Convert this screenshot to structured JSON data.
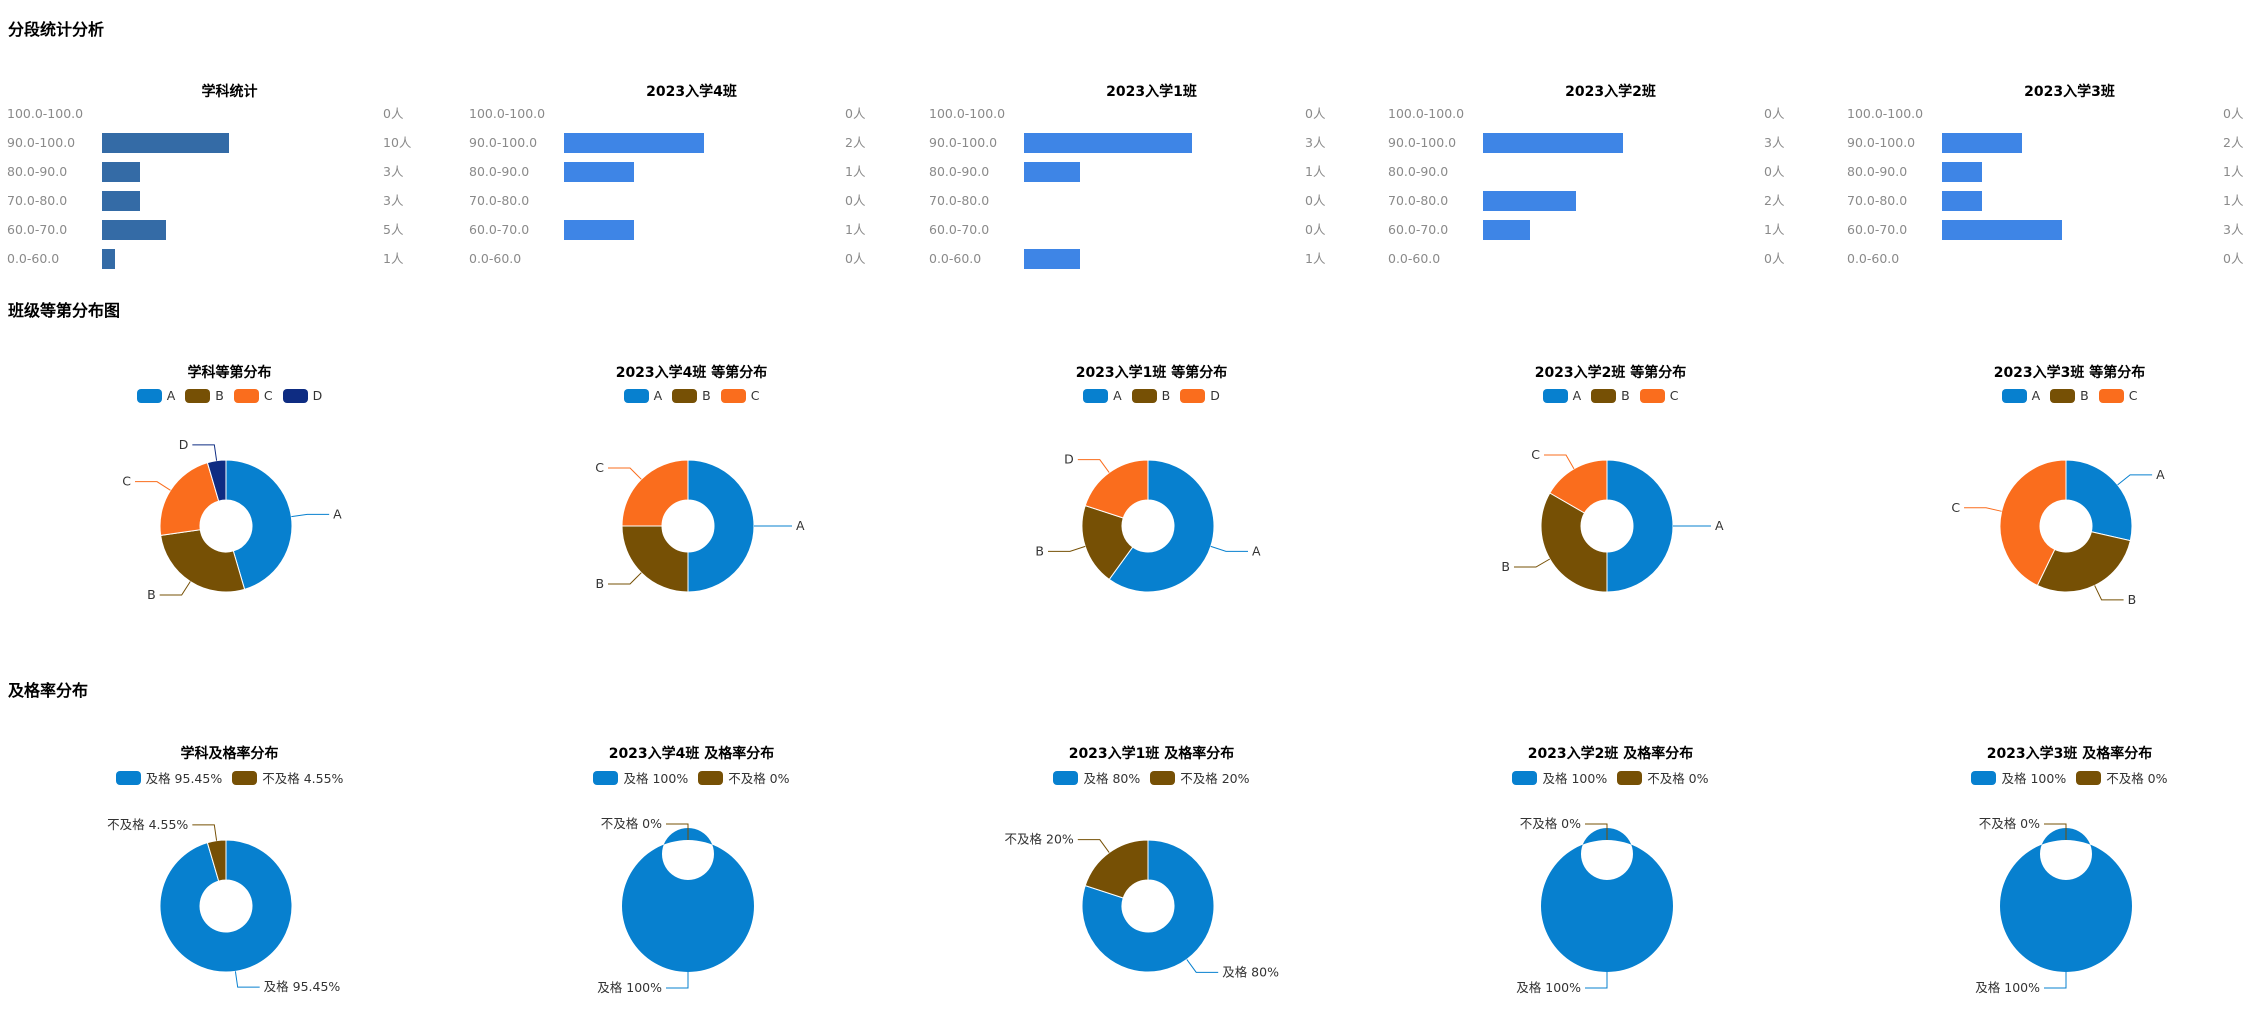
{
  "sections": [
    "分段统计分析",
    "班级等第分布图",
    "及格率分布"
  ],
  "colors": {
    "subject_bar": "#346ba6",
    "class_bar": "#3e85e6",
    "A": "#0780cf",
    "B": "#765005",
    "C": "#fa6d1d",
    "D": "#0e2c82",
    "pass": "#0780cf",
    "fail": "#765005"
  },
  "chart_data": [
    {
      "type": "bar",
      "group": "segment",
      "title": "学科统计",
      "categories": [
        "100.0-100.0",
        "90.0-100.0",
        "80.0-90.0",
        "70.0-80.0",
        "60.0-70.0",
        "0.0-60.0"
      ],
      "values": [
        0,
        10,
        3,
        3,
        5,
        1
      ],
      "labels": [
        "0人",
        "10人",
        "3人",
        "3人",
        "5人",
        "1人"
      ],
      "xlim": [
        0,
        22
      ]
    },
    {
      "type": "bar",
      "group": "segment",
      "title": "2023入学4班",
      "categories": [
        "100.0-100.0",
        "90.0-100.0",
        "80.0-90.0",
        "70.0-80.0",
        "60.0-70.0",
        "0.0-60.0"
      ],
      "values": [
        0,
        2,
        1,
        0,
        1,
        0
      ],
      "labels": [
        "0人",
        "2人",
        "1人",
        "0人",
        "1人",
        "0人"
      ],
      "xlim": [
        0,
        4
      ]
    },
    {
      "type": "bar",
      "group": "segment",
      "title": "2023入学1班",
      "categories": [
        "100.0-100.0",
        "90.0-100.0",
        "80.0-90.0",
        "70.0-80.0",
        "60.0-70.0",
        "0.0-60.0"
      ],
      "values": [
        0,
        3,
        1,
        0,
        0,
        1
      ],
      "labels": [
        "0人",
        "3人",
        "1人",
        "0人",
        "0人",
        "1人"
      ],
      "xlim": [
        0,
        5
      ]
    },
    {
      "type": "bar",
      "group": "segment",
      "title": "2023入学2班",
      "categories": [
        "100.0-100.0",
        "90.0-100.0",
        "80.0-90.0",
        "70.0-80.0",
        "60.0-70.0",
        "0.0-60.0"
      ],
      "values": [
        0,
        3,
        0,
        2,
        1,
        0
      ],
      "labels": [
        "0人",
        "3人",
        "0人",
        "2人",
        "1人",
        "0人"
      ],
      "xlim": [
        0,
        6
      ]
    },
    {
      "type": "bar",
      "group": "segment",
      "title": "2023入学3班",
      "categories": [
        "100.0-100.0",
        "90.0-100.0",
        "80.0-90.0",
        "70.0-80.0",
        "60.0-70.0",
        "0.0-60.0"
      ],
      "values": [
        0,
        2,
        1,
        1,
        3,
        0
      ],
      "labels": [
        "0人",
        "2人",
        "1人",
        "1人",
        "3人",
        "0人"
      ],
      "xlim": [
        0,
        7
      ]
    },
    {
      "type": "pie",
      "group": "grade",
      "title": "学科等第分布",
      "slices": [
        {
          "name": "A",
          "value": 10,
          "label": "A",
          "color": "A"
        },
        {
          "name": "B",
          "value": 6,
          "label": "B",
          "color": "B"
        },
        {
          "name": "C",
          "value": 5,
          "label": "C",
          "color": "C"
        },
        {
          "name": "D",
          "value": 1,
          "label": "D",
          "color": "D"
        }
      ]
    },
    {
      "type": "pie",
      "group": "grade",
      "title": "2023入学4班 等第分布",
      "slices": [
        {
          "name": "A",
          "value": 2,
          "label": "A",
          "color": "A"
        },
        {
          "name": "B",
          "value": 1,
          "label": "B",
          "color": "B"
        },
        {
          "name": "C",
          "value": 1,
          "label": "C",
          "color": "C"
        }
      ]
    },
    {
      "type": "pie",
      "group": "grade",
      "title": "2023入学1班 等第分布",
      "slices": [
        {
          "name": "A",
          "value": 3,
          "label": "A",
          "color": "A"
        },
        {
          "name": "B",
          "value": 1,
          "label": "B",
          "color": "B"
        },
        {
          "name": "D",
          "value": 1,
          "label": "D",
          "color": "C"
        }
      ]
    },
    {
      "type": "pie",
      "group": "grade",
      "title": "2023入学2班 等第分布",
      "slices": [
        {
          "name": "A",
          "value": 3,
          "label": "A",
          "color": "A"
        },
        {
          "name": "B",
          "value": 2,
          "label": "B",
          "color": "B"
        },
        {
          "name": "C",
          "value": 1,
          "label": "C",
          "color": "C"
        }
      ]
    },
    {
      "type": "pie",
      "group": "grade",
      "title": "2023入学3班 等第分布",
      "slices": [
        {
          "name": "A",
          "value": 2,
          "label": "A",
          "color": "A"
        },
        {
          "name": "B",
          "value": 2,
          "label": "B",
          "color": "B"
        },
        {
          "name": "C",
          "value": 3,
          "label": "C",
          "color": "C"
        }
      ]
    },
    {
      "type": "pie",
      "group": "pass",
      "title": "学科及格率分布",
      "slices": [
        {
          "name": "及格 95.45%",
          "value": 95.45,
          "label": "及格 95.45%",
          "color": "pass"
        },
        {
          "name": "不及格 4.55%",
          "value": 4.55,
          "label": "不及格 4.55%",
          "color": "fail"
        }
      ]
    },
    {
      "type": "pie",
      "group": "pass",
      "title": "2023入学4班 及格率分布",
      "slices": [
        {
          "name": "及格 100%",
          "value": 100,
          "label": "及格 100%",
          "color": "pass"
        },
        {
          "name": "不及格 0%",
          "value": 0,
          "label": "不及格 0%",
          "color": "fail"
        }
      ]
    },
    {
      "type": "pie",
      "group": "pass",
      "title": "2023入学1班 及格率分布",
      "slices": [
        {
          "name": "及格 80%",
          "value": 80,
          "label": "及格 80%",
          "color": "pass"
        },
        {
          "name": "不及格 20%",
          "value": 20,
          "label": "不及格 20%",
          "color": "fail"
        }
      ]
    },
    {
      "type": "pie",
      "group": "pass",
      "title": "2023入学2班 及格率分布",
      "slices": [
        {
          "name": "及格 100%",
          "value": 100,
          "label": "及格 100%",
          "color": "pass"
        },
        {
          "name": "不及格 0%",
          "value": 0,
          "label": "不及格 0%",
          "color": "fail"
        }
      ]
    },
    {
      "type": "pie",
      "group": "pass",
      "title": "2023入学3班 及格率分布",
      "slices": [
        {
          "name": "及格 100%",
          "value": 100,
          "label": "及格 100%",
          "color": "pass"
        },
        {
          "name": "不及格 0%",
          "value": 0,
          "label": "不及格 0%",
          "color": "fail"
        }
      ]
    }
  ]
}
